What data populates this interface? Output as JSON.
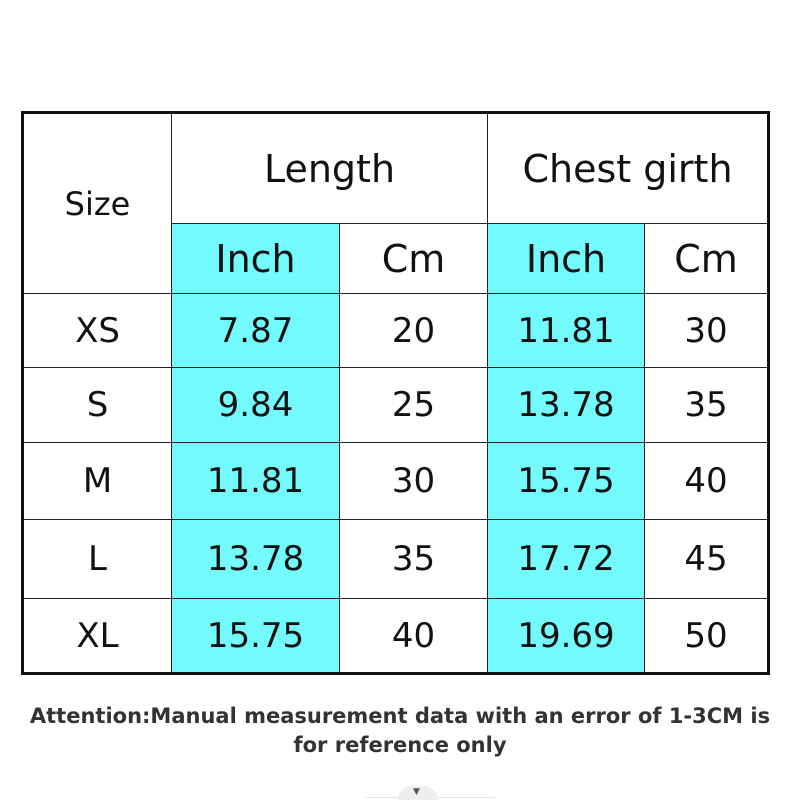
{
  "table": {
    "size_header": "Size",
    "groups": [
      "Length",
      "Chest girth"
    ],
    "units": [
      "Inch",
      "Cm",
      "Inch",
      "Cm"
    ],
    "rows": [
      {
        "size": "XS",
        "values": [
          "7.87",
          "20",
          "11.81",
          "30"
        ]
      },
      {
        "size": "S",
        "values": [
          "9.84",
          "25",
          "13.78",
          "35"
        ]
      },
      {
        "size": "M",
        "values": [
          "11.81",
          "30",
          "15.75",
          "40"
        ]
      },
      {
        "size": "L",
        "values": [
          "13.78",
          "35",
          "17.72",
          "45"
        ]
      },
      {
        "size": "XL",
        "values": [
          "15.75",
          "40",
          "19.69",
          "50"
        ]
      }
    ],
    "highlight_color": "#72fafc"
  },
  "note": {
    "line1": "Attention:Manual measurement data with an error of 1-3CM is",
    "line2": "for reference only"
  },
  "handle_icon": "caret-down-icon"
}
